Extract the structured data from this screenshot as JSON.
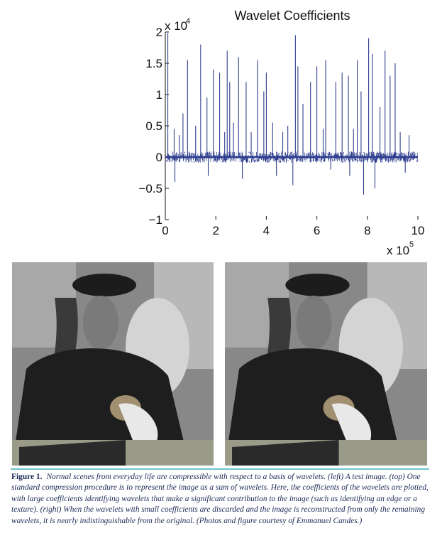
{
  "chart_data": {
    "type": "line",
    "title": "Wavelet Coefficients",
    "y_multiplier": "x 10",
    "y_exponent": "4",
    "x_multiplier": "x 10",
    "x_exponent": "5",
    "xlim": [
      0,
      10
    ],
    "ylim": [
      -1,
      2
    ],
    "x_ticks": [
      "0",
      "2",
      "4",
      "6",
      "8",
      "10"
    ],
    "y_ticks": [
      "−1",
      "−0.5",
      "0",
      "0.5",
      "1",
      "1.5",
      "2"
    ],
    "grid": false,
    "series": [
      {
        "color": "#2f3f8f",
        "spikes": [
          {
            "x": 0.1,
            "y": 1.98
          },
          {
            "x": 0.35,
            "y": 0.45
          },
          {
            "x": 0.38,
            "y": -0.4
          },
          {
            "x": 0.55,
            "y": 0.35
          },
          {
            "x": 0.7,
            "y": 0.7
          },
          {
            "x": 0.88,
            "y": 1.55
          },
          {
            "x": 1.2,
            "y": 0.5
          },
          {
            "x": 1.4,
            "y": 1.8
          },
          {
            "x": 1.65,
            "y": 0.95
          },
          {
            "x": 1.7,
            "y": -0.3
          },
          {
            "x": 1.9,
            "y": 1.4
          },
          {
            "x": 2.15,
            "y": 1.35
          },
          {
            "x": 2.35,
            "y": 0.4
          },
          {
            "x": 2.45,
            "y": 1.7
          },
          {
            "x": 2.55,
            "y": 1.2
          },
          {
            "x": 2.7,
            "y": 0.55
          },
          {
            "x": 2.9,
            "y": 1.6
          },
          {
            "x": 3.05,
            "y": -0.35
          },
          {
            "x": 3.2,
            "y": 1.2
          },
          {
            "x": 3.4,
            "y": 0.4
          },
          {
            "x": 3.65,
            "y": 1.55
          },
          {
            "x": 3.9,
            "y": 1.05
          },
          {
            "x": 4.0,
            "y": 1.35
          },
          {
            "x": 4.25,
            "y": 0.55
          },
          {
            "x": 4.4,
            "y": -0.3
          },
          {
            "x": 4.65,
            "y": 0.4
          },
          {
            "x": 4.85,
            "y": 0.5
          },
          {
            "x": 5.05,
            "y": -0.45
          },
          {
            "x": 5.15,
            "y": 1.95
          },
          {
            "x": 5.25,
            "y": 1.45
          },
          {
            "x": 5.45,
            "y": 0.85
          },
          {
            "x": 5.75,
            "y": 1.2
          },
          {
            "x": 6.0,
            "y": 1.45
          },
          {
            "x": 6.25,
            "y": 0.45
          },
          {
            "x": 6.35,
            "y": 1.55
          },
          {
            "x": 6.55,
            "y": -0.2
          },
          {
            "x": 6.75,
            "y": 1.2
          },
          {
            "x": 7.0,
            "y": 1.35
          },
          {
            "x": 7.25,
            "y": 1.3
          },
          {
            "x": 7.3,
            "y": -0.3
          },
          {
            "x": 7.45,
            "y": 0.45
          },
          {
            "x": 7.6,
            "y": 1.55
          },
          {
            "x": 7.75,
            "y": 1.05
          },
          {
            "x": 7.85,
            "y": -0.6
          },
          {
            "x": 8.05,
            "y": 1.9
          },
          {
            "x": 8.2,
            "y": 1.65
          },
          {
            "x": 8.3,
            "y": -0.5
          },
          {
            "x": 8.5,
            "y": 0.8
          },
          {
            "x": 8.7,
            "y": 1.7
          },
          {
            "x": 8.9,
            "y": 1.3
          },
          {
            "x": 9.1,
            "y": 1.5
          },
          {
            "x": 9.3,
            "y": 0.4
          },
          {
            "x": 9.5,
            "y": -0.25
          },
          {
            "x": 9.65,
            "y": 0.35
          }
        ]
      }
    ]
  },
  "figure": {
    "label": "Figure 1.",
    "caption": "Normal scenes from everyday life are compressible with respect to a basis of wavelets. (left) A test image. (top) One standard compression procedure is to represent the image as a sum of wavelets. Here, the coefficients of the wavelets are plotted, with large coefficients identifying wavelets that make a significant contribution to the image (such as identifying an edge or a texture). (right) When the wavelets with small coefficients are discarded and the image is reconstructed from only the remaining wavelets, it is nearly indistinguishable from the original. (Photos and figure courtesy of Emmanuel Candes.)",
    "rule_color": "#6cc4cf",
    "caption_color": "#1b2a55"
  }
}
